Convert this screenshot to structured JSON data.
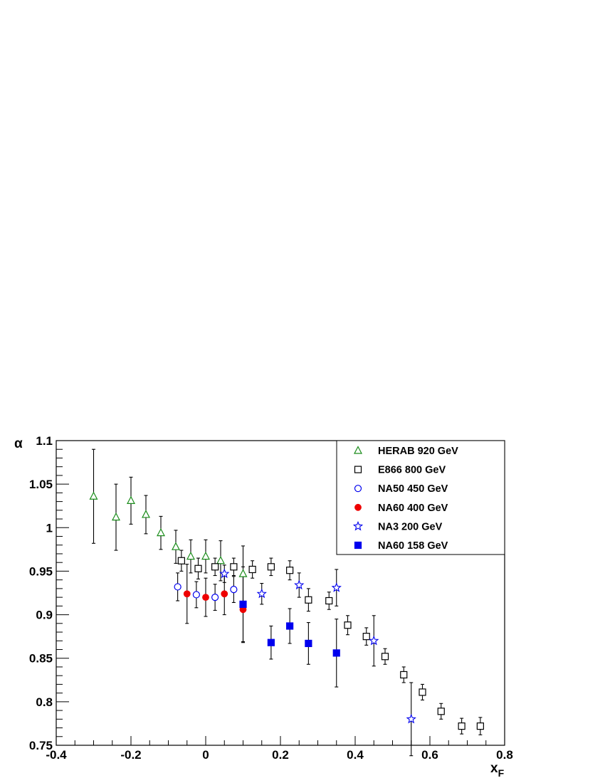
{
  "chart_data": {
    "type": "scatter",
    "title": "",
    "xlabel": "x",
    "xlabel_sub": "F",
    "ylabel": "α",
    "xlim": [
      -0.4,
      0.8
    ],
    "ylim": [
      0.75,
      1.1
    ],
    "x_ticks": [
      -0.4,
      -0.2,
      0,
      0.2,
      0.4,
      0.6,
      0.8
    ],
    "x_tick_labels": [
      "-0.4",
      "-0.2",
      "0",
      "0.2",
      "0.4",
      "0.6",
      "0.8"
    ],
    "y_ticks": [
      0.75,
      0.8,
      0.85,
      0.9,
      0.95,
      1.0,
      1.05,
      1.1
    ],
    "y_tick_labels": [
      "0.75",
      "0.8",
      "0.85",
      "0.9",
      "0.95",
      "1",
      "1.05",
      "1.1"
    ],
    "grid": false,
    "legend_position": "top-right",
    "series": [
      {
        "name": "HERAB 920 GeV",
        "marker": "open-triangle",
        "color": "#1a8c1a",
        "points": [
          {
            "x": -0.3,
            "y": 1.036,
            "err": 0.054
          },
          {
            "x": -0.24,
            "y": 1.012,
            "err": 0.038
          },
          {
            "x": -0.2,
            "y": 1.031,
            "err": 0.027
          },
          {
            "x": -0.16,
            "y": 1.015,
            "err": 0.022
          },
          {
            "x": -0.12,
            "y": 0.994,
            "err": 0.019
          },
          {
            "x": -0.08,
            "y": 0.978,
            "err": 0.019
          },
          {
            "x": -0.04,
            "y": 0.967,
            "err": 0.019
          },
          {
            "x": 0.0,
            "y": 0.967,
            "err": 0.019
          },
          {
            "x": 0.04,
            "y": 0.962,
            "err": 0.023
          },
          {
            "x": 0.1,
            "y": 0.947,
            "err": 0.032
          }
        ]
      },
      {
        "name": "E866 800 GeV",
        "marker": "open-square",
        "color": "#000000",
        "points": [
          {
            "x": -0.065,
            "y": 0.962,
            "err": 0.012
          },
          {
            "x": -0.02,
            "y": 0.953,
            "err": 0.012
          },
          {
            "x": 0.025,
            "y": 0.955,
            "err": 0.01
          },
          {
            "x": 0.075,
            "y": 0.955,
            "err": 0.01
          },
          {
            "x": 0.125,
            "y": 0.952,
            "err": 0.01
          },
          {
            "x": 0.175,
            "y": 0.955,
            "err": 0.01
          },
          {
            "x": 0.225,
            "y": 0.951,
            "err": 0.011
          },
          {
            "x": 0.275,
            "y": 0.917,
            "err": 0.013
          },
          {
            "x": 0.33,
            "y": 0.916,
            "err": 0.01
          },
          {
            "x": 0.38,
            "y": 0.888,
            "err": 0.011
          },
          {
            "x": 0.43,
            "y": 0.875,
            "err": 0.01
          },
          {
            "x": 0.48,
            "y": 0.852,
            "err": 0.009
          },
          {
            "x": 0.53,
            "y": 0.831,
            "err": 0.009
          },
          {
            "x": 0.58,
            "y": 0.811,
            "err": 0.009
          },
          {
            "x": 0.63,
            "y": 0.789,
            "err": 0.009
          },
          {
            "x": 0.685,
            "y": 0.772,
            "err": 0.009
          },
          {
            "x": 0.735,
            "y": 0.772,
            "err": 0.01
          }
        ]
      },
      {
        "name": "NA50 450 GeV",
        "marker": "open-circle",
        "color": "#0000ee",
        "points": [
          {
            "x": -0.075,
            "y": 0.932,
            "err": 0.016
          },
          {
            "x": -0.025,
            "y": 0.923,
            "err": 0.015
          },
          {
            "x": 0.025,
            "y": 0.92,
            "err": 0.015
          },
          {
            "x": 0.075,
            "y": 0.929,
            "err": 0.015
          }
        ]
      },
      {
        "name": "NA60 400 GeV",
        "marker": "filled-circle",
        "color": "#ee0000",
        "points": [
          {
            "x": -0.05,
            "y": 0.924,
            "err": 0.034
          },
          {
            "x": 0.0,
            "y": 0.92,
            "err": 0.022
          },
          {
            "x": 0.05,
            "y": 0.924,
            "err": 0.024
          },
          {
            "x": 0.1,
            "y": 0.906,
            "err": 0.038
          }
        ]
      },
      {
        "name": "NA3 200 GeV",
        "marker": "open-star",
        "color": "#0000ee",
        "points": [
          {
            "x": 0.05,
            "y": 0.947,
            "err": 0.01
          },
          {
            "x": 0.15,
            "y": 0.924,
            "err": 0.012
          },
          {
            "x": 0.25,
            "y": 0.934,
            "err": 0.014
          },
          {
            "x": 0.35,
            "y": 0.931,
            "err": 0.021
          },
          {
            "x": 0.45,
            "y": 0.87,
            "err": 0.029
          },
          {
            "x": 0.55,
            "y": 0.78,
            "err": 0.042
          }
        ]
      },
      {
        "name": "NA60 158 GeV",
        "marker": "filled-square",
        "color": "#0000ee",
        "points": [
          {
            "x": 0.1,
            "y": 0.912,
            "err": 0.043
          },
          {
            "x": 0.175,
            "y": 0.868,
            "err": 0.019
          },
          {
            "x": 0.225,
            "y": 0.887,
            "err": 0.02
          },
          {
            "x": 0.275,
            "y": 0.867,
            "err": 0.024
          },
          {
            "x": 0.35,
            "y": 0.856,
            "err": 0.039
          }
        ]
      }
    ]
  }
}
